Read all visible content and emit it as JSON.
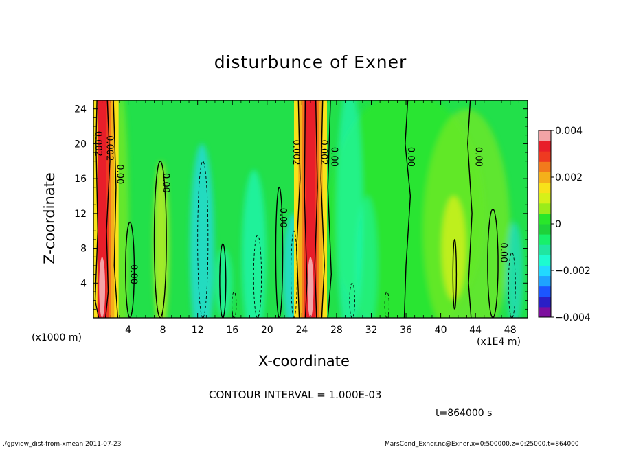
{
  "chart_data": {
    "type": "heatmap",
    "title": "disturbunce of Exner",
    "xlabel": "X-coordinate",
    "ylabel": "Z-coordinate",
    "x_unit_left": "(x1000 m)",
    "x_unit_right": "(x1E4 m)",
    "xlim": [
      0,
      50
    ],
    "ylim": [
      0,
      25
    ],
    "x_ticks": [
      4,
      8,
      12,
      16,
      20,
      24,
      28,
      32,
      36,
      40,
      44,
      48
    ],
    "y_ticks": [
      4,
      8,
      12,
      16,
      20,
      24
    ],
    "colorbar": {
      "range": [
        -0.004,
        0.004
      ],
      "tick_values": [
        0.004,
        0.002,
        0,
        -0.002,
        -0.004
      ],
      "tick_labels": [
        "0.004",
        "0.002",
        "0",
        "−0.002",
        "−0.004"
      ],
      "colors": [
        "#7d0f9e",
        "#2a1fc6",
        "#1b56ff",
        "#1fa3ff",
        "#22d9ff",
        "#1dfbd0",
        "#20e6a0",
        "#18f06a",
        "#1ed23a",
        "#29e62a",
        "#9bec1a",
        "#d6f019",
        "#f7e21a",
        "#f4b01a",
        "#f27a1c",
        "#ee3a21",
        "#e81e2a",
        "#f3a3a6"
      ]
    },
    "contour_interval": "CONTOUR INTERVAL = 1.000E-03",
    "time_label": "t=864000 s",
    "contour_labels": [
      {
        "text": "0.002",
        "x": 0.5,
        "z": 20.0
      },
      {
        "text": "0.002",
        "x": 1.8,
        "z": 19.5
      },
      {
        "text": "0.00",
        "x": 3.0,
        "z": 16.5
      },
      {
        "text": "0.00",
        "x": 4.6,
        "z": 5.0
      },
      {
        "text": "0.00",
        "x": 8.3,
        "z": 15.5
      },
      {
        "text": "0.00",
        "x": 21.8,
        "z": 11.5
      },
      {
        "text": "0.002",
        "x": 23.3,
        "z": 19.0
      },
      {
        "text": "0.002",
        "x": 26.5,
        "z": 19.0
      },
      {
        "text": "0.00",
        "x": 27.7,
        "z": 18.5
      },
      {
        "text": "0.00",
        "x": 36.5,
        "z": 18.5
      },
      {
        "text": "0.00",
        "x": 44.3,
        "z": 18.5
      },
      {
        "text": "0.00",
        "x": 47.2,
        "z": 7.5
      }
    ]
  },
  "footer": {
    "left": "./gpview_dist-from-xmean  2011-07-23",
    "right": "MarsCond_Exner.nc@Exner,x=0:500000,z=0:25000,t=864000"
  }
}
